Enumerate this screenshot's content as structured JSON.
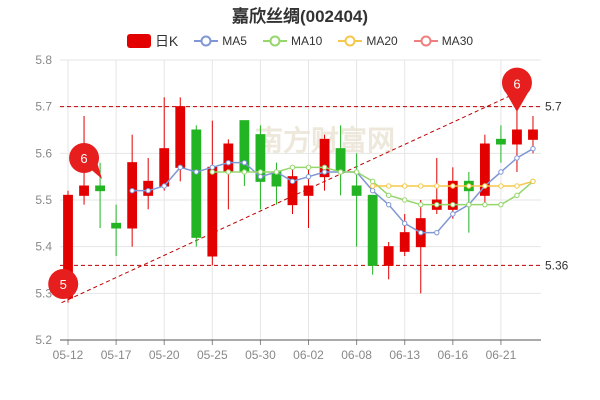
{
  "title": "嘉欣丝绸(002404)",
  "legend": [
    {
      "label": "日K",
      "color": "#e30000",
      "kind": "candle"
    },
    {
      "label": "MA5",
      "color": "#7f97d4",
      "kind": "line"
    },
    {
      "label": "MA10",
      "color": "#95d66d",
      "kind": "line"
    },
    {
      "label": "MA20",
      "color": "#f5c74a",
      "kind": "line"
    },
    {
      "label": "MA30",
      "color": "#ef7f7f",
      "kind": "line"
    }
  ],
  "colors": {
    "up": "#e30000",
    "down": "#22b422",
    "grid": "#e6e6e6",
    "axis": "#888888",
    "ref": "#c00000"
  },
  "watermark": "南方财富网",
  "chart_data": {
    "type": "candlestick",
    "ylim": [
      5.2,
      5.8
    ],
    "yticks": [
      "5.2",
      "5.3",
      "5.4",
      "5.5",
      "5.6",
      "5.7",
      "5.8"
    ],
    "xtick_labels": [
      "05-12",
      "05-17",
      "05-20",
      "05-25",
      "05-30",
      "06-02",
      "06-08",
      "06-13",
      "06-16",
      "06-21"
    ],
    "xtick_indices": [
      0,
      3,
      6,
      9,
      12,
      15,
      18,
      21,
      24,
      27
    ],
    "candles": [
      {
        "date": "05-12",
        "open": 5.29,
        "close": 5.51,
        "high": 5.52,
        "low": 5.28
      },
      {
        "date": "05-13",
        "open": 5.51,
        "close": 5.53,
        "high": 5.68,
        "low": 5.49
      },
      {
        "date": "05-16",
        "open": 5.53,
        "close": 5.52,
        "high": 5.58,
        "low": 5.44
      },
      {
        "date": "05-17",
        "open": 5.45,
        "close": 5.44,
        "high": 5.49,
        "low": 5.38
      },
      {
        "date": "05-18",
        "open": 5.44,
        "close": 5.58,
        "high": 5.64,
        "low": 5.4
      },
      {
        "date": "05-19",
        "open": 5.51,
        "close": 5.54,
        "high": 5.59,
        "low": 5.48
      },
      {
        "date": "05-20",
        "open": 5.53,
        "close": 5.61,
        "high": 5.72,
        "low": 5.52
      },
      {
        "date": "05-23",
        "open": 5.57,
        "close": 5.7,
        "high": 5.72,
        "low": 5.54
      },
      {
        "date": "05-24",
        "open": 5.65,
        "close": 5.42,
        "high": 5.66,
        "low": 5.4
      },
      {
        "date": "05-25",
        "open": 5.38,
        "close": 5.57,
        "high": 5.67,
        "low": 5.36
      },
      {
        "date": "05-26",
        "open": 5.56,
        "close": 5.62,
        "high": 5.63,
        "low": 5.48
      },
      {
        "date": "05-27",
        "open": 5.67,
        "close": 5.56,
        "high": 5.67,
        "low": 5.53
      },
      {
        "date": "05-30",
        "open": 5.64,
        "close": 5.54,
        "high": 5.66,
        "low": 5.48
      },
      {
        "date": "05-31",
        "open": 5.56,
        "close": 5.53,
        "high": 5.58,
        "low": 5.49
      },
      {
        "date": "06-01",
        "open": 5.49,
        "close": 5.55,
        "high": 5.57,
        "low": 5.47
      },
      {
        "date": "06-02",
        "open": 5.51,
        "close": 5.53,
        "high": 5.57,
        "low": 5.44
      },
      {
        "date": "06-06",
        "open": 5.55,
        "close": 5.63,
        "high": 5.64,
        "low": 5.52
      },
      {
        "date": "06-07",
        "open": 5.61,
        "close": 5.56,
        "high": 5.66,
        "low": 5.51
      },
      {
        "date": "06-08",
        "open": 5.53,
        "close": 5.51,
        "high": 5.6,
        "low": 5.4
      },
      {
        "date": "06-09",
        "open": 5.51,
        "close": 5.36,
        "high": 5.51,
        "low": 5.34
      },
      {
        "date": "06-10",
        "open": 5.36,
        "close": 5.4,
        "high": 5.41,
        "low": 5.33
      },
      {
        "date": "06-13",
        "open": 5.39,
        "close": 5.43,
        "high": 5.47,
        "low": 5.38
      },
      {
        "date": "06-14",
        "open": 5.4,
        "close": 5.46,
        "high": 5.5,
        "low": 5.3
      },
      {
        "date": "06-15",
        "open": 5.48,
        "close": 5.5,
        "high": 5.59,
        "low": 5.47
      },
      {
        "date": "06-16",
        "open": 5.48,
        "close": 5.54,
        "high": 5.57,
        "low": 5.46
      },
      {
        "date": "06-17",
        "open": 5.54,
        "close": 5.52,
        "high": 5.56,
        "low": 5.43
      },
      {
        "date": "06-20",
        "open": 5.51,
        "close": 5.62,
        "high": 5.64,
        "low": 5.49
      },
      {
        "date": "06-21",
        "open": 5.63,
        "close": 5.62,
        "high": 5.66,
        "low": 5.58
      },
      {
        "date": "06-22",
        "open": 5.62,
        "close": 5.65,
        "high": 5.73,
        "low": 5.56
      },
      {
        "date": "06-23",
        "open": 5.63,
        "close": 5.65,
        "high": 5.68,
        "low": 5.6
      }
    ],
    "series": [
      {
        "name": "MA5",
        "values": [
          null,
          null,
          null,
          null,
          5.52,
          5.52,
          5.53,
          5.57,
          5.56,
          5.57,
          5.58,
          5.58,
          5.55,
          5.56,
          5.54,
          5.55,
          5.56,
          5.56,
          5.56,
          5.52,
          5.49,
          5.45,
          5.43,
          5.43,
          5.47,
          5.49,
          5.53,
          5.56,
          5.59,
          5.61
        ]
      },
      {
        "name": "MA10",
        "values": [
          null,
          null,
          null,
          null,
          null,
          null,
          null,
          null,
          null,
          5.56,
          5.56,
          5.56,
          5.56,
          5.56,
          5.57,
          5.57,
          5.57,
          5.56,
          5.56,
          5.54,
          5.51,
          5.5,
          5.49,
          5.49,
          5.49,
          5.49,
          5.49,
          5.49,
          5.51,
          5.54
        ]
      },
      {
        "name": "MA20",
        "values": [
          null,
          null,
          null,
          null,
          null,
          null,
          null,
          null,
          null,
          null,
          null,
          null,
          null,
          null,
          null,
          null,
          null,
          null,
          null,
          5.53,
          5.53,
          5.53,
          5.53,
          5.53,
          5.53,
          5.53,
          5.53,
          5.53,
          5.53,
          5.54
        ]
      }
    ],
    "reference_lines": [
      {
        "value": 5.7,
        "label": "5.7"
      },
      {
        "value": 5.36,
        "label": "5.36"
      }
    ],
    "markers": [
      {
        "index": 0,
        "value": 5.32,
        "label": "5",
        "pin": "round"
      },
      {
        "index": 1,
        "value": 5.59,
        "label": "6",
        "pin": "right"
      },
      {
        "index": 28,
        "value": 5.75,
        "label": "6",
        "pin": "down"
      }
    ],
    "trend_line": {
      "from": {
        "index": 0,
        "value": 5.28
      },
      "to": {
        "index": 28,
        "value": 5.73
      }
    }
  }
}
